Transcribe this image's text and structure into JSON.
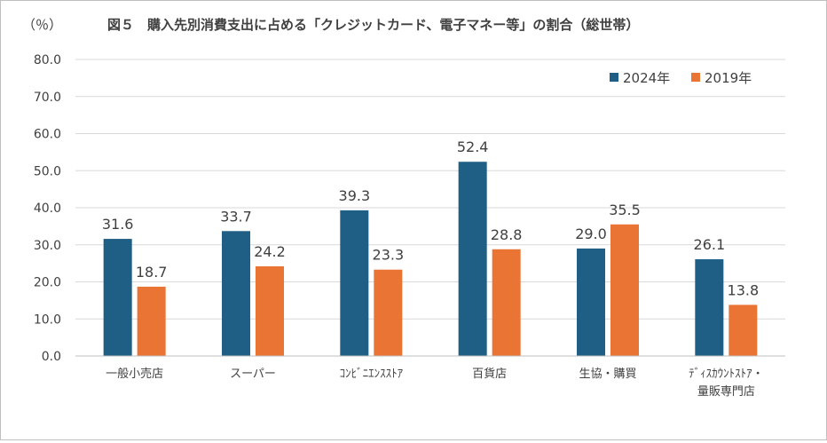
{
  "chart_data": {
    "type": "bar",
    "title": "図５　購入先別消費支出に占める「クレジットカード、電子マネー等」の割合（総世帯）",
    "unit_label": "（％）",
    "xlabel": "",
    "ylabel": "",
    "ylim": [
      0,
      80
    ],
    "yticks": [
      0,
      10,
      20,
      30,
      40,
      50,
      60,
      70,
      80
    ],
    "ytick_labels": [
      "0.0",
      "10.0",
      "20.0",
      "30.0",
      "40.0",
      "50.0",
      "60.0",
      "70.0",
      "80.0"
    ],
    "grid": true,
    "legend_position": "top-right",
    "categories": [
      [
        "一般小売店"
      ],
      [
        "スーパー"
      ],
      [
        "ｺﾝﾋﾞﾆｴﾝｽｽﾄｱ"
      ],
      [
        "百貨店"
      ],
      [
        "生協・購買"
      ],
      [
        "ﾃﾞｨｽｶｳﾝﾄｽﾄｱ・",
        "量販専門店"
      ]
    ],
    "series": [
      {
        "name": "2024年",
        "color": "#1f5f86",
        "values": [
          31.6,
          33.7,
          39.3,
          52.4,
          29.0,
          26.1
        ],
        "labels": [
          "31.6",
          "33.7",
          "39.3",
          "52.4",
          "29.0",
          "26.1"
        ]
      },
      {
        "name": "2019年",
        "color": "#ea7434",
        "values": [
          18.7,
          24.2,
          23.3,
          28.8,
          35.5,
          13.8
        ],
        "labels": [
          "18.7",
          "24.2",
          "23.3",
          "28.8",
          "35.5",
          "13.8"
        ]
      }
    ]
  }
}
